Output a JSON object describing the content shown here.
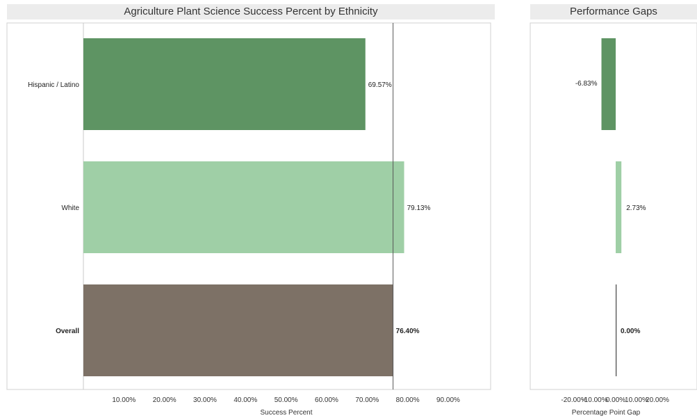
{
  "chart_data": [
    {
      "type": "bar",
      "orientation": "horizontal",
      "title": "Agriculture Plant Science Success Percent by Ethnicity",
      "xlabel": "Success Percent",
      "categories": [
        "Hispanic / Latino",
        "White",
        "Overall"
      ],
      "values": [
        69.57,
        79.13,
        76.4
      ],
      "value_labels": [
        "69.57%",
        "79.13%",
        "76.40%"
      ],
      "xlim": [
        0,
        100
      ],
      "xticks": [
        10,
        20,
        30,
        40,
        50,
        60,
        70,
        80,
        90
      ],
      "xtick_labels": [
        "10.00%",
        "20.00%",
        "30.00%",
        "40.00%",
        "50.00%",
        "60.00%",
        "70.00%",
        "80.00%",
        "90.00%"
      ],
      "reference_line": 76.4,
      "colors": [
        "#5e9463",
        "#9fcfa6",
        "#7d7166"
      ],
      "bold_categories": [
        "Overall"
      ],
      "grid": false
    },
    {
      "type": "bar",
      "orientation": "horizontal",
      "title": "Performance Gaps",
      "xlabel": "Percentage Point Gap",
      "categories": [
        "Hispanic / Latino",
        "White",
        "Overall"
      ],
      "values": [
        -6.83,
        2.73,
        0.0
      ],
      "value_labels": [
        "-6.83%",
        "2.73%",
        "0.00%"
      ],
      "xlim": [
        -27,
        20
      ],
      "xticks": [
        -20,
        -10,
        0,
        10,
        20
      ],
      "xtick_labels": [
        "-20.00%",
        "-10.00%",
        "0.00%",
        "10.00%",
        "20.00%"
      ],
      "colors": [
        "#5e9463",
        "#9fcfa6",
        "#444444"
      ],
      "bold_categories": [
        "Overall"
      ],
      "grid": false
    }
  ]
}
